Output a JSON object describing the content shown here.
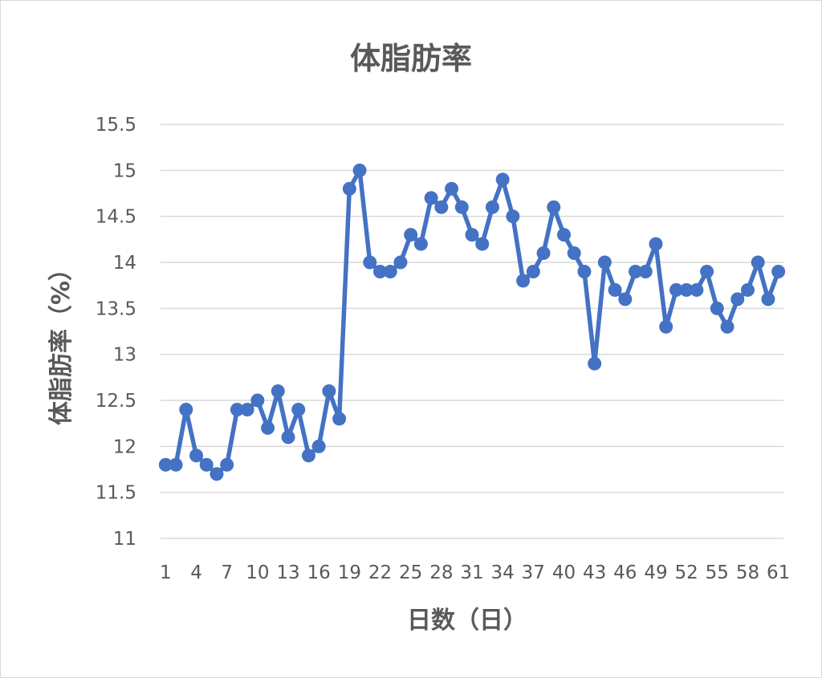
{
  "chart_data": {
    "type": "line",
    "title": "体脂肪率",
    "xlabel": "日数（日）",
    "ylabel": "体脂肪率（%）",
    "x": [
      1,
      2,
      3,
      4,
      5,
      6,
      7,
      8,
      9,
      10,
      11,
      12,
      13,
      14,
      15,
      16,
      17,
      18,
      19,
      20,
      21,
      22,
      23,
      24,
      25,
      26,
      27,
      28,
      29,
      30,
      31,
      32,
      33,
      34,
      35,
      36,
      37,
      38,
      39,
      40,
      41,
      42,
      43,
      44,
      45,
      46,
      47,
      48,
      49,
      50,
      51,
      52,
      53,
      54,
      55,
      56,
      57,
      58,
      59,
      60,
      61
    ],
    "x_tick_labels": [
      "1",
      "4",
      "7",
      "10",
      "13",
      "16",
      "19",
      "22",
      "25",
      "28",
      "31",
      "34",
      "37",
      "40",
      "43",
      "46",
      "49",
      "52",
      "55",
      "58",
      "61"
    ],
    "y_tick_labels": [
      "11",
      "11.5",
      "12",
      "12.5",
      "13",
      "13.5",
      "14",
      "14.5",
      "15",
      "15.5"
    ],
    "ylim": [
      11,
      15.5
    ],
    "grid": true,
    "legend": "none",
    "series": [
      {
        "color": "#4472c4",
        "values": [
          11.8,
          11.8,
          12.4,
          11.9,
          11.8,
          11.7,
          11.8,
          12.4,
          12.4,
          12.5,
          12.2,
          12.6,
          12.1,
          12.4,
          11.9,
          12.0,
          12.6,
          12.3,
          14.8,
          15.0,
          14.0,
          13.9,
          13.9,
          14.0,
          14.3,
          14.2,
          14.7,
          14.6,
          14.8,
          14.6,
          14.3,
          14.2,
          14.6,
          14.9,
          14.5,
          13.8,
          13.9,
          14.1,
          14.6,
          14.3,
          14.1,
          13.9,
          12.9,
          14.0,
          13.7,
          13.6,
          13.9,
          13.9,
          14.2,
          13.3,
          13.7,
          13.7,
          13.7,
          13.9,
          13.5,
          13.3,
          13.6,
          13.7,
          14.0,
          13.6,
          13.9
        ]
      }
    ]
  }
}
